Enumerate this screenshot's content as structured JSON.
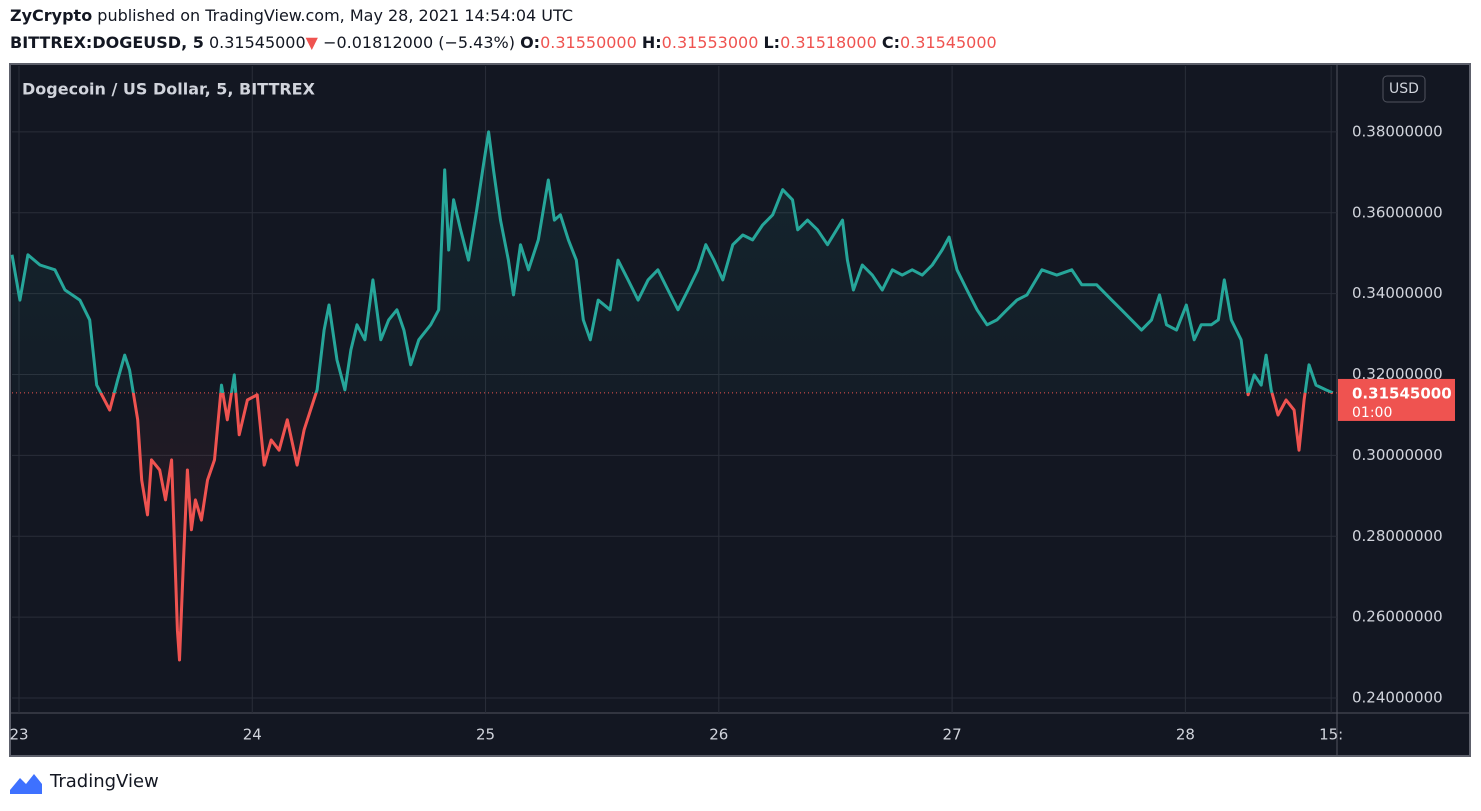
{
  "header": {
    "author": "ZyCrypto",
    "published": "published on TradingView.com, May 28, 2021 14:54:04 UTC",
    "symbol": "BITTREX:DOGEUSD, 5",
    "price": "0.31545000",
    "arrow": "▼",
    "change": "−0.01812000 (−5.43%)",
    "ohlc": [
      {
        "key": "O:",
        "value": "0.31550000"
      },
      {
        "key": "H:",
        "value": "0.31553000"
      },
      {
        "key": "L:",
        "value": "0.31518000"
      },
      {
        "key": "C:",
        "value": "0.31545000"
      }
    ]
  },
  "footer": {
    "brand": "TradingView"
  },
  "chart_data": {
    "type": "baseline",
    "title": "Dogecoin / US Dollar, 5, BITTREX",
    "currency": "USD",
    "up_color": "#26a69a",
    "down_color": "#ef5350",
    "grid": true,
    "baseline": 0.31545,
    "price_label": "0.31545000",
    "countdown": "01:00",
    "xlim": [
      22.97,
      28.65
    ],
    "xticks": [
      {
        "value": 23,
        "label": "23"
      },
      {
        "value": 24,
        "label": "24"
      },
      {
        "value": 25,
        "label": "25"
      },
      {
        "value": 26,
        "label": "26"
      },
      {
        "value": 27,
        "label": "27"
      },
      {
        "value": 28,
        "label": "28"
      },
      {
        "value": 28.625,
        "label": "15:"
      }
    ],
    "ylim": [
      0.2363,
      0.3963
    ],
    "yticks": [
      {
        "value": 0.24,
        "label": "0.24000000"
      },
      {
        "value": 0.26,
        "label": "0.26000000"
      },
      {
        "value": 0.28,
        "label": "0.28000000"
      },
      {
        "value": 0.3,
        "label": "0.30000000"
      },
      {
        "value": 0.32,
        "label": "0.32000000"
      },
      {
        "value": 0.34,
        "label": "0.34000000"
      },
      {
        "value": 0.36,
        "label": "0.36000000"
      },
      {
        "value": 0.38,
        "label": "0.38000000"
      }
    ],
    "series": [
      {
        "name": "DOGEUSD",
        "x": [
          22.97,
          23.004,
          23.038,
          23.09,
          23.154,
          23.197,
          23.261,
          23.303,
          23.333,
          23.389,
          23.423,
          23.453,
          23.474,
          23.509,
          23.526,
          23.551,
          23.568,
          23.603,
          23.628,
          23.654,
          23.679,
          23.688,
          23.705,
          23.722,
          23.739,
          23.756,
          23.782,
          23.808,
          23.838,
          23.868,
          23.893,
          23.923,
          23.944,
          23.979,
          24.021,
          24.051,
          24.081,
          24.115,
          24.15,
          24.192,
          24.222,
          24.278,
          24.308,
          24.329,
          24.363,
          24.397,
          24.423,
          24.449,
          24.483,
          24.517,
          24.551,
          24.585,
          24.62,
          24.65,
          24.679,
          24.714,
          24.765,
          24.799,
          24.825,
          24.842,
          24.863,
          24.893,
          24.927,
          24.962,
          24.991,
          25.013,
          25.034,
          25.064,
          25.098,
          25.12,
          25.15,
          25.184,
          25.226,
          25.269,
          25.295,
          25.321,
          25.355,
          25.389,
          25.419,
          25.449,
          25.483,
          25.534,
          25.568,
          25.611,
          25.654,
          25.697,
          25.739,
          25.782,
          25.825,
          25.868,
          25.91,
          25.944,
          25.979,
          26.017,
          26.06,
          26.103,
          26.145,
          26.188,
          26.231,
          26.274,
          26.316,
          26.338,
          26.38,
          26.423,
          26.466,
          26.53,
          26.551,
          26.577,
          26.615,
          26.658,
          26.701,
          26.744,
          26.786,
          26.829,
          26.872,
          26.915,
          26.957,
          26.987,
          27.021,
          27.064,
          27.107,
          27.15,
          27.192,
          27.235,
          27.278,
          27.321,
          27.385,
          27.449,
          27.513,
          27.556,
          27.62,
          27.684,
          27.726,
          27.769,
          27.812,
          27.855,
          27.889,
          27.919,
          27.962,
          28.004,
          28.038,
          28.068,
          28.111,
          28.141,
          28.167,
          28.197,
          28.239,
          28.269,
          28.295,
          28.325,
          28.346,
          28.368,
          28.397,
          28.432,
          28.466,
          28.487,
          28.509,
          28.53,
          28.56,
          28.603,
          28.632
        ],
        "values": [
          0.3496,
          0.3384,
          0.3496,
          0.3471,
          0.3459,
          0.3409,
          0.3384,
          0.3335,
          0.3174,
          0.3112,
          0.3187,
          0.3248,
          0.3211,
          0.3088,
          0.2939,
          0.2853,
          0.2989,
          0.2964,
          0.289,
          0.2989,
          0.2568,
          0.2494,
          0.2741,
          0.2964,
          0.2816,
          0.289,
          0.284,
          0.2939,
          0.2989,
          0.3174,
          0.3088,
          0.3199,
          0.3051,
          0.3137,
          0.315,
          0.2976,
          0.3038,
          0.3013,
          0.3088,
          0.2976,
          0.3063,
          0.3162,
          0.331,
          0.3372,
          0.3236,
          0.3162,
          0.3261,
          0.3323,
          0.3286,
          0.3434,
          0.3286,
          0.3335,
          0.336,
          0.331,
          0.3224,
          0.3286,
          0.3323,
          0.336,
          0.3706,
          0.3508,
          0.3632,
          0.3558,
          0.3483,
          0.3607,
          0.3718,
          0.38,
          0.3706,
          0.3582,
          0.3483,
          0.3397,
          0.3521,
          0.3459,
          0.3533,
          0.3681,
          0.3582,
          0.3595,
          0.3533,
          0.3483,
          0.3335,
          0.3286,
          0.3384,
          0.336,
          0.3483,
          0.3434,
          0.3384,
          0.3434,
          0.3459,
          0.3409,
          0.336,
          0.3409,
          0.3459,
          0.3521,
          0.3483,
          0.3434,
          0.3521,
          0.3545,
          0.3533,
          0.357,
          0.3595,
          0.3657,
          0.3632,
          0.3558,
          0.3582,
          0.3558,
          0.3521,
          0.3582,
          0.3483,
          0.3409,
          0.3471,
          0.3446,
          0.3409,
          0.3459,
          0.3446,
          0.3459,
          0.3446,
          0.3471,
          0.3508,
          0.354,
          0.3459,
          0.3409,
          0.336,
          0.3323,
          0.3335,
          0.336,
          0.3384,
          0.3397,
          0.3459,
          0.3446,
          0.3459,
          0.3422,
          0.3422,
          0.3384,
          0.336,
          0.3335,
          0.331,
          0.3335,
          0.3397,
          0.3323,
          0.331,
          0.3372,
          0.3286,
          0.3323,
          0.3323,
          0.3335,
          0.3434,
          0.3335,
          0.3286,
          0.315,
          0.3199,
          0.3174,
          0.3248,
          0.3162,
          0.31,
          0.3137,
          0.3112,
          0.3013,
          0.3137,
          0.3224,
          0.3174,
          0.3162,
          0.31545
        ]
      }
    ]
  }
}
